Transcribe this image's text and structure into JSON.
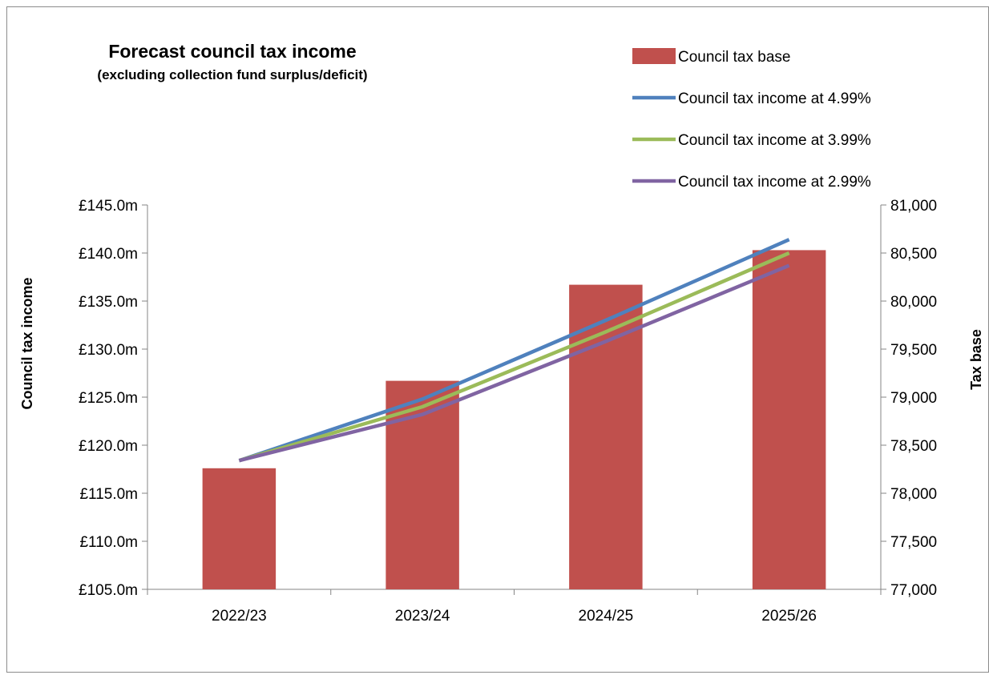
{
  "chart_data": {
    "type": "bar",
    "title": "Forecast council tax income",
    "subtitle": "(excluding collection fund surplus/deficit)",
    "categories": [
      "2022/23",
      "2023/24",
      "2024/25",
      "2025/26"
    ],
    "y_left_label": "Council tax income",
    "y_right_label": "Tax base",
    "y_left_ticks": [
      "£145.0m",
      "£140.0m",
      "£135.0m",
      "£130.0m",
      "£125.0m",
      "£120.0m",
      "£115.0m",
      "£110.0m",
      "£105.0m"
    ],
    "y_right_ticks": [
      "81,000",
      "80,500",
      "80,000",
      "79,500",
      "79,000",
      "78,500",
      "78,000",
      "77,500",
      "77,000"
    ],
    "ylim_left": [
      105,
      145
    ],
    "ylim_right": [
      77000,
      81000
    ],
    "grid": false,
    "legend_position": "top-right",
    "bars": {
      "name": "Council tax base",
      "axis": "right",
      "color": "#c0504d",
      "values": [
        78260,
        79170,
        80170,
        80530
      ]
    },
    "series": [
      {
        "name": "Council tax income at 4.99%",
        "axis": "left",
        "color": "#4f81bd",
        "values": [
          118.4,
          124.8,
          133.0,
          141.4
        ]
      },
      {
        "name": "Council tax income at 3.99%",
        "axis": "left",
        "color": "#9bbb59",
        "values": [
          118.4,
          124.0,
          131.8,
          140.0
        ]
      },
      {
        "name": "Council tax income at 2.99%",
        "axis": "left",
        "color": "#8064a2",
        "values": [
          118.4,
          123.2,
          130.8,
          138.7
        ]
      }
    ]
  }
}
